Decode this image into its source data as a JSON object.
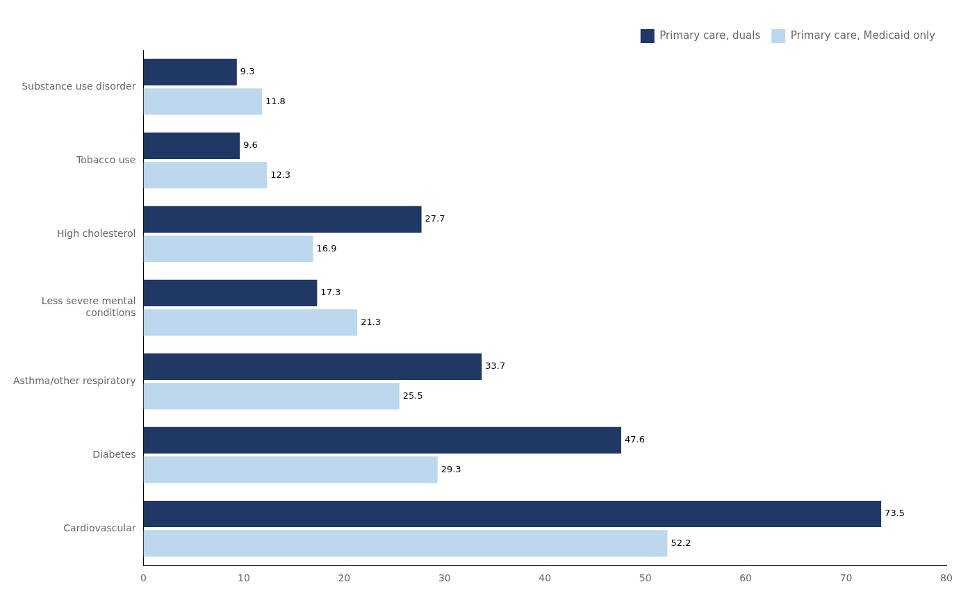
{
  "chart_data": {
    "type": "bar",
    "orientation": "horizontal",
    "categories": [
      "Cardiovascular",
      "Diabetes",
      "Asthma/other respiratory",
      "Less severe mental\nconditions",
      "High cholesterol",
      "Tobacco use",
      "Substance use disorder"
    ],
    "series": [
      {
        "name": "Primary care, duals",
        "color": "#1F3864",
        "values": [
          73.5,
          47.6,
          33.7,
          17.3,
          27.7,
          9.6,
          9.3
        ]
      },
      {
        "name": "Primary care, Medicaid only",
        "color": "#BDD7EE",
        "values": [
          52.2,
          29.3,
          25.5,
          21.3,
          16.9,
          12.3,
          11.8
        ]
      }
    ],
    "xlim": [
      0,
      80
    ],
    "xticks": [
      0,
      10,
      20,
      30,
      40,
      50,
      60,
      70,
      80
    ],
    "grid": false,
    "legend": "upper right",
    "data_labels": true
  }
}
